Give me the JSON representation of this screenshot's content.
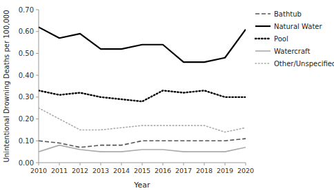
{
  "chart_data": {
    "type": "line",
    "x_label": "Year",
    "y_label": "Unintentional Drowning Deaths per 100,000",
    "x": [
      2010,
      2011,
      2012,
      2013,
      2014,
      2015,
      2016,
      2017,
      2018,
      2019,
      2020
    ],
    "xlim": [
      2010,
      2020
    ],
    "xticks": [
      2010,
      2011,
      2012,
      2013,
      2014,
      2015,
      2016,
      2017,
      2018,
      2019,
      2020
    ],
    "ylim": [
      0.0,
      0.7
    ],
    "yticks": [
      {
        "value": 0.0,
        "label": "0.00"
      },
      {
        "value": 0.1,
        "label": "0.10"
      },
      {
        "value": 0.2,
        "label": "0.20"
      },
      {
        "value": 0.3,
        "label": "0.30"
      },
      {
        "value": 0.4,
        "label": "0.40"
      },
      {
        "value": 0.5,
        "label": "0.50"
      },
      {
        "value": 0.6,
        "label": "0.60"
      },
      {
        "value": 0.7,
        "label": "0.70"
      }
    ],
    "grid": false,
    "legend": "right",
    "series": [
      {
        "name": "Bathtub",
        "color": "#555555",
        "line_style": "dashed",
        "values": [
          0.1,
          0.09,
          0.07,
          0.08,
          0.08,
          0.1,
          0.1,
          0.1,
          0.1,
          0.1,
          0.11
        ]
      },
      {
        "name": "Natural Water",
        "color": "#000000",
        "line_style": "solid",
        "values": [
          0.62,
          0.57,
          0.59,
          0.52,
          0.52,
          0.54,
          0.54,
          0.46,
          0.46,
          0.48,
          0.61
        ]
      },
      {
        "name": "Pool",
        "color": "#000000",
        "line_style": "dotted",
        "values": [
          0.33,
          0.31,
          0.32,
          0.3,
          0.29,
          0.28,
          0.33,
          0.32,
          0.33,
          0.3,
          0.3
        ]
      },
      {
        "name": "Watercraft",
        "color": "#aaaaaa",
        "line_style": "solid",
        "values": [
          0.05,
          0.08,
          0.06,
          0.05,
          0.05,
          0.06,
          0.06,
          0.05,
          0.05,
          0.05,
          0.07
        ]
      },
      {
        "name": "Other/Unspecified",
        "color": "#aaaaaa",
        "line_style": "dotted",
        "values": [
          0.25,
          0.2,
          0.15,
          0.15,
          0.16,
          0.17,
          0.17,
          0.17,
          0.17,
          0.14,
          0.16
        ]
      }
    ]
  }
}
